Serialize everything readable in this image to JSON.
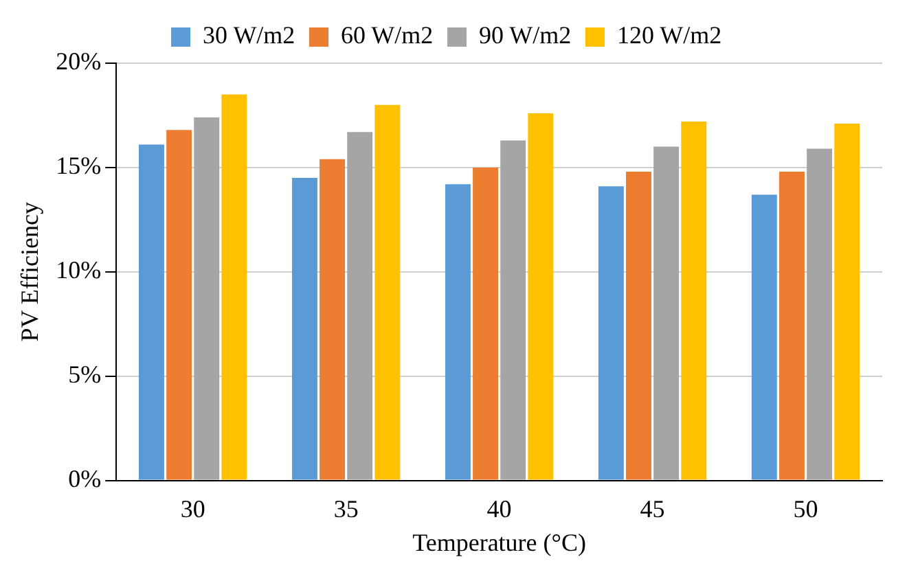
{
  "chart_data": {
    "type": "bar",
    "xlabel": "Temperature (°C)",
    "ylabel": "PV Efficiency",
    "categories": [
      "30",
      "35",
      "40",
      "45",
      "50"
    ],
    "series": [
      {
        "name": "30 W/m2",
        "color": "#5b9bd5",
        "values": [
          16.1,
          14.5,
          14.2,
          14.1,
          13.7
        ]
      },
      {
        "name": "60 W/m2",
        "color": "#ed7d31",
        "values": [
          16.8,
          15.4,
          15.0,
          14.8,
          14.8
        ]
      },
      {
        "name": "90 W/m2",
        "color": "#a5a5a5",
        "values": [
          17.4,
          16.7,
          16.3,
          16.0,
          15.9
        ]
      },
      {
        "name": "120 W/m2",
        "color": "#ffc000",
        "values": [
          18.5,
          18.0,
          17.6,
          17.2,
          17.1
        ]
      }
    ],
    "ylim": [
      0,
      20
    ],
    "yticks": [
      {
        "value": 0,
        "label": "0%"
      },
      {
        "value": 5,
        "label": "5%"
      },
      {
        "value": 10,
        "label": "10%"
      },
      {
        "value": 15,
        "label": "15%"
      },
      {
        "value": 20,
        "label": "20%"
      }
    ],
    "grid": "y",
    "legend": "top"
  }
}
